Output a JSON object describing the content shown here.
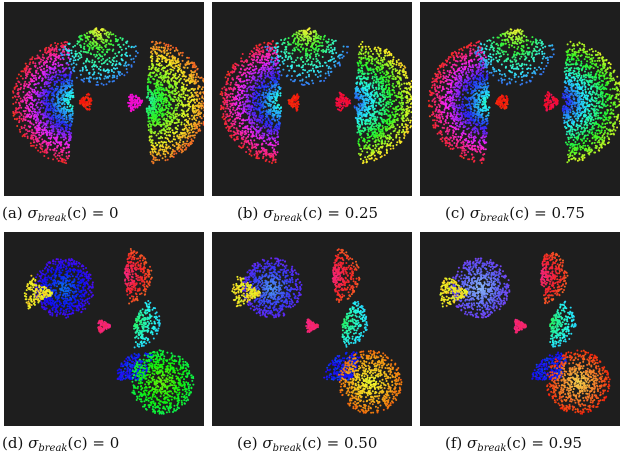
{
  "figure": {
    "panels": [
      {
        "id": "a",
        "row": 1,
        "label": "(a)",
        "sigma": "σ",
        "sub": "break",
        "arg": "(c)",
        "value": "= 0",
        "scene": "split-kidney",
        "break_level": 0.0
      },
      {
        "id": "b",
        "row": 1,
        "label": "(b)",
        "sigma": "σ",
        "sub": "break",
        "arg": "(c)",
        "value": "= 0.25",
        "scene": "split-kidney",
        "break_level": 0.25
      },
      {
        "id": "c",
        "row": 1,
        "label": "(c)",
        "sigma": "σ",
        "sub": "break",
        "arg": "(c)",
        "value": "= 0.75",
        "scene": "split-kidney",
        "break_level": 0.75
      },
      {
        "id": "d",
        "row": 2,
        "label": "(d)",
        "sigma": "σ",
        "sub": "break",
        "arg": "(c)",
        "value": "= 0",
        "scene": "clusters",
        "break_level": 0.0
      },
      {
        "id": "e",
        "row": 2,
        "label": "(e)",
        "sigma": "σ",
        "sub": "break",
        "arg": "(c)",
        "value": "= 0.50",
        "scene": "clusters",
        "break_level": 0.5
      },
      {
        "id": "f",
        "row": 2,
        "label": "(f)",
        "sigma": "σ",
        "sub": "break",
        "arg": "(c)",
        "value": "= 0.95",
        "scene": "clusters",
        "break_level": 0.95
      }
    ],
    "colors": {
      "panel_bg": "#1e1e1e",
      "caption_text": "#111111"
    }
  }
}
